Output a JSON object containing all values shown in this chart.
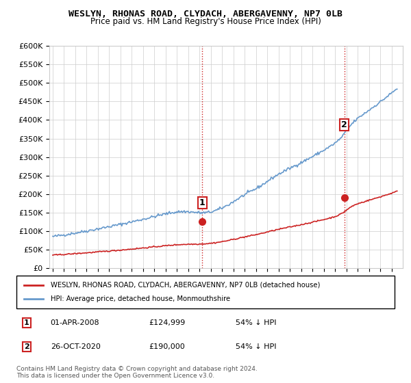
{
  "title": "WESLYN, RHONAS ROAD, CLYDACH, ABERGAVENNY, NP7 0LB",
  "subtitle": "Price paid vs. HM Land Registry's House Price Index (HPI)",
  "ylabel_ticks": [
    "£0",
    "£50K",
    "£100K",
    "£150K",
    "£200K",
    "£250K",
    "£300K",
    "£350K",
    "£400K",
    "£450K",
    "£500K",
    "£550K",
    "£600K"
  ],
  "ylim": [
    0,
    600000
  ],
  "ytick_values": [
    0,
    50000,
    100000,
    150000,
    200000,
    250000,
    300000,
    350000,
    400000,
    450000,
    500000,
    550000,
    600000
  ],
  "hpi_color": "#6699cc",
  "price_color": "#cc2222",
  "marker_color_1": "#cc2222",
  "marker_color_2": "#cc2222",
  "annotation_color": "#cc2222",
  "sale1_label": "1",
  "sale1_year": 2008.25,
  "sale1_price": 124999,
  "sale2_label": "2",
  "sale2_year": 2020.82,
  "sale2_price": 190000,
  "vline_color": "#cc2222",
  "vline_style": ":",
  "legend_line1": "WESLYN, RHONAS ROAD, CLYDACH, ABERGAVENNY, NP7 0LB (detached house)",
  "legend_line2": "HPI: Average price, detached house, Monmouthshire",
  "table_row1": "1    01-APR-2008    £124,999    54% ↓ HPI",
  "table_row2": "2    26-OCT-2020    £190,000    54% ↓ HPI",
  "footnote": "Contains HM Land Registry data © Crown copyright and database right 2024.\nThis data is licensed under the Open Government Licence v3.0.",
  "xmin": 1995,
  "xmax": 2026
}
